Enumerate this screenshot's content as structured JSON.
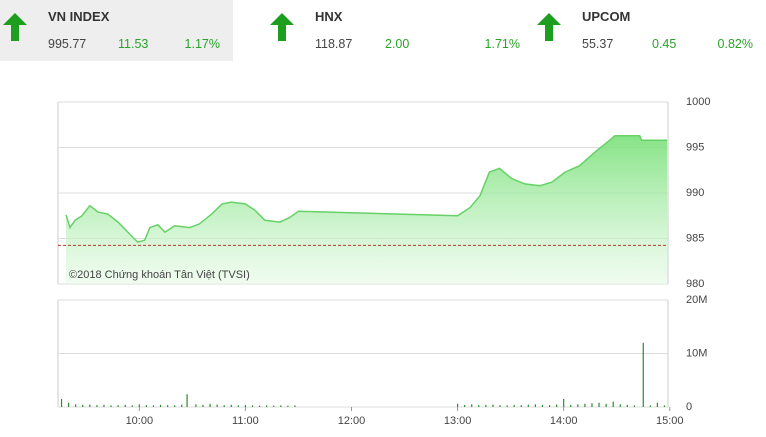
{
  "indices": [
    {
      "name": "VN INDEX",
      "value": "995.77",
      "change": "11.53",
      "percent": "1.17%"
    },
    {
      "name": "HNX",
      "value": "118.87",
      "change": "2.00",
      "percent": "1.71%"
    },
    {
      "name": "UPCOM",
      "value": "55.37",
      "change": "0.45",
      "percent": "0.82%"
    }
  ],
  "chart_data": [
    {
      "type": "area",
      "annotation": "©2018 Chứng khoán Tân Việt (TVSI)",
      "color": "#66d166",
      "reference_value": 984.24,
      "reference_color": "#c0392b",
      "x": [
        558.5,
        560.8,
        563.6,
        567.6,
        572,
        576.6,
        582,
        588,
        593.5,
        599,
        603,
        606,
        610.5,
        614.5,
        620,
        628.6,
        634,
        641,
        646.8,
        652,
        659.8,
        665.4,
        671,
        679.5,
        685,
        690,
        780,
        787,
        792.7,
        798,
        803.7,
        810.5,
        818,
        826.6,
        833.4,
        840.8,
        849,
        857.7,
        863.4,
        869,
        883,
        884,
        898.5
      ],
      "values": [
        987.6,
        986.2,
        987.0,
        987.5,
        988.6,
        987.9,
        987.7,
        986.8,
        985.7,
        984.6,
        984.8,
        986.2,
        986.5,
        985.7,
        986.4,
        986.2,
        986.6,
        987.7,
        988.8,
        989.0,
        988.8,
        988.1,
        987.0,
        986.8,
        987.3,
        988.0,
        987.5,
        988.4,
        989.7,
        992.3,
        992.7,
        991.6,
        991.0,
        990.8,
        991.2,
        992.3,
        993.0,
        994.5,
        995.4,
        996.3,
        996.3,
        995.8,
        995.8
      ],
      "xlim": [
        554,
        899
      ],
      "ylim": [
        980,
        1000
      ],
      "yticks": [
        1000,
        995,
        990,
        985,
        980
      ],
      "grid": true
    },
    {
      "type": "bar",
      "color": "#2e8b2e",
      "x": [
        556,
        560,
        564,
        568,
        572,
        576,
        580,
        584,
        588,
        592,
        596,
        600,
        604,
        608,
        612,
        616,
        620,
        624,
        627,
        632,
        636,
        640,
        644,
        648,
        652,
        656,
        660,
        664,
        668,
        672,
        676,
        680,
        684,
        688,
        780,
        784,
        788,
        792,
        796,
        800,
        804,
        808,
        812,
        816,
        820,
        824,
        828,
        832,
        836,
        840,
        844,
        848,
        852,
        856,
        860,
        864,
        868,
        872,
        876,
        880,
        885,
        889,
        893,
        897
      ],
      "values": [
        1500000,
        800000,
        500000,
        400000,
        450000,
        350000,
        400000,
        300000,
        350000,
        400000,
        300000,
        500000,
        350000,
        300000,
        400000,
        350000,
        300000,
        450000,
        2400000,
        500000,
        400000,
        600000,
        450000,
        350000,
        400000,
        300000,
        350000,
        300000,
        250000,
        300000,
        250000,
        300000,
        250000,
        300000,
        600000,
        400000,
        500000,
        350000,
        400000,
        450000,
        350000,
        300000,
        400000,
        350000,
        450000,
        500000,
        400000,
        350000,
        450000,
        1500000,
        400000,
        500000,
        600000,
        700000,
        800000,
        600000,
        1000000,
        500000,
        400000,
        300000,
        12000000,
        300000,
        800000,
        300000
      ],
      "xlim": [
        554,
        899
      ],
      "ylim": [
        0,
        20000000
      ],
      "yticks": [
        {
          "value": 20000000,
          "label": "20M"
        },
        {
          "value": 10000000,
          "label": "10M"
        },
        0
      ],
      "xticks": [
        {
          "value": 600,
          "label": "10:00"
        },
        {
          "value": 660,
          "label": "11:00"
        },
        {
          "value": 720,
          "label": "12:00"
        },
        {
          "value": 780,
          "label": "13:00"
        },
        {
          "value": 840,
          "label": "14:00"
        },
        {
          "value": 900,
          "label": "15:00"
        }
      ],
      "grid": true
    }
  ]
}
